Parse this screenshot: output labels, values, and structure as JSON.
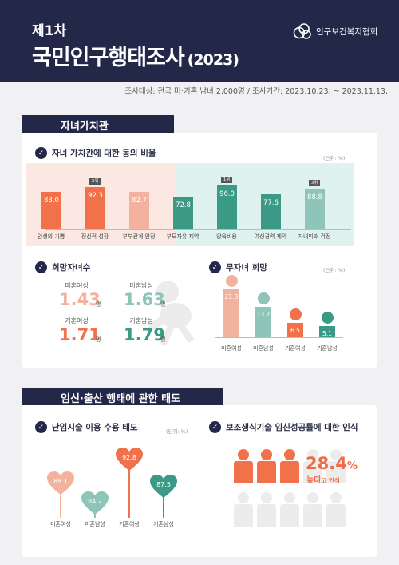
{
  "header": {
    "subtitle": "제1차",
    "title": "국민인구행태조사",
    "year": "(2023)",
    "org": "인구보건복지협회"
  },
  "survey_info": "조사대상: 전국 미·기혼 남녀 2,000명 / 조사기간: 2023.10.23. ~ 2023.11.13.",
  "section1": {
    "title": "자녀가치관",
    "q1": {
      "title": "자녀 가치관에 대한 동의 비율",
      "unit": "(단위: %)",
      "bars": [
        {
          "label": "인생의 기쁨",
          "value": 83.0,
          "value_text": "83.0",
          "color": "#f0714a"
        },
        {
          "label": "정신적 성장",
          "value": 92.3,
          "value_text": "92.3",
          "color": "#f0714a",
          "rank": "2위"
        },
        {
          "label": "부부관계 안정",
          "value": 82.7,
          "value_text": "82.7",
          "color": "#f3b29d"
        },
        {
          "label": "부모자유 제약",
          "value": 72.8,
          "value_text": "72.8",
          "color": "#3a9a86"
        },
        {
          "label": "양육비용",
          "value": 96.0,
          "value_text": "96.0",
          "color": "#3a9a86",
          "rank": "1위"
        },
        {
          "label": "여성경력 제약",
          "value": 77.6,
          "value_text": "77.6",
          "color": "#3a9a86"
        },
        {
          "label": "자녀미래 걱정",
          "value": 88.8,
          "value_text": "88.8",
          "color": "#8fc4b8",
          "rank": "3위"
        }
      ]
    },
    "q2": {
      "title": "희망자녀수",
      "items": [
        {
          "label": "미혼여성",
          "value": "1.43",
          "unit": "명",
          "color": "#f3b29d"
        },
        {
          "label": "미혼남성",
          "value": "1.63",
          "unit": "명",
          "color": "#8fc4b8"
        },
        {
          "label": "기혼여성",
          "value": "1.71",
          "unit": "명",
          "color": "#f0714a"
        },
        {
          "label": "기혼남성",
          "value": "1.79",
          "unit": "명",
          "color": "#3a9a86"
        }
      ]
    },
    "q3": {
      "title": "무자녀 희망",
      "unit": "(단위: %)",
      "bars": [
        {
          "label": "미혼여성",
          "value": 21.3,
          "value_text": "21.3",
          "color": "#f3b29d"
        },
        {
          "label": "미혼남성",
          "value": 13.7,
          "value_text": "13.7",
          "color": "#8fc4b8"
        },
        {
          "label": "기혼여성",
          "value": 6.5,
          "value_text": "6.5",
          "color": "#f0714a"
        },
        {
          "label": "기혼남성",
          "value": 5.1,
          "value_text": "5.1",
          "color": "#3a9a86"
        }
      ]
    }
  },
  "section2": {
    "title": "임신·출산 행태에 관한 태도",
    "q4": {
      "title": "난임시술 이용 수용 태도",
      "unit": "(단위: %)",
      "pins": [
        {
          "label": "미혼여성",
          "value": 88.1,
          "value_text": "88.1",
          "color": "#f3b29d"
        },
        {
          "label": "미혼남성",
          "value": 84.2,
          "value_text": "84.2",
          "color": "#8fc4b8"
        },
        {
          "label": "기혼여성",
          "value": 92.8,
          "value_text": "92.8",
          "color": "#f0714a"
        },
        {
          "label": "기혼남성",
          "value": 87.5,
          "value_text": "87.5",
          "color": "#3a9a86"
        }
      ]
    },
    "q5": {
      "title": "보조생식기술 임신성공률에 대한 인식",
      "percent_value": 28.4,
      "percent_number": "28.4",
      "percent_sign": "%",
      "caption_main": "높다",
      "caption_small": "고 인식"
    }
  },
  "colors": {
    "navy": "#232849",
    "coral": "#f0714a",
    "teal": "#3a9a86",
    "pink": "#f3b29d",
    "mint": "#8fc4b8"
  }
}
